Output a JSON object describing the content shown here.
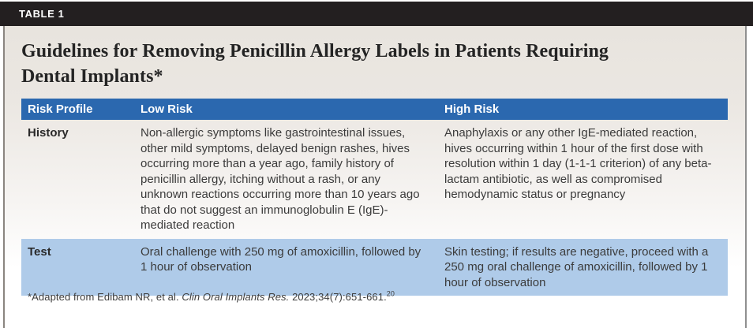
{
  "banner": {
    "label": "TABLE 1"
  },
  "title": {
    "line1": "Guidelines for Removing Penicillin Allergy Labels in Patients Requiring",
    "line2": "Dental Implants*"
  },
  "table": {
    "columns": [
      {
        "label": "Risk Profile"
      },
      {
        "label": "Low Risk"
      },
      {
        "label": "High Risk"
      }
    ],
    "rows": [
      {
        "label": "History",
        "low_risk": "Non-allergic symptoms like gastrointestinal issues, other mild symptoms, delayed benign rashes, hives occurring more than a year ago, family history of penicillin allergy, itching without a rash, or any unknown reactions occurring more than 10 years ago that do not suggest an immunoglobulin E (IgE)-mediated reaction",
        "high_risk": "Anaphylaxis or any other IgE-mediated reaction, hives occurring within 1 hour of the first dose with resolution within 1 day (1-1-1 criterion) of any beta-lactam antibiotic, as well as compromised hemodynamic status or pregnancy"
      },
      {
        "label": "Test",
        "low_risk": "Oral challenge with 250 mg of amoxicillin, followed by 1 hour of observation",
        "high_risk": "Skin testing; if results are negative, proceed with a 250 mg oral challenge of amoxicillin, followed by 1 hour of observation"
      }
    ]
  },
  "footnote": {
    "prefix": "*Adapted from Edibam NR, et al. ",
    "journal_italic": "Clin Oral Implants Res.",
    "suffix": " 2023;34(7):651-661.",
    "reference_superscript": "20"
  },
  "colors": {
    "banner_bg": "#231f20",
    "table_header_bg": "#2b68af",
    "table_header_text": "#ffffff",
    "test_row_bg": "#afcbe9",
    "page_gradient_top": "#e8e4de",
    "page_gradient_bottom": "#ffffff",
    "body_text": "#3b3b3b"
  }
}
